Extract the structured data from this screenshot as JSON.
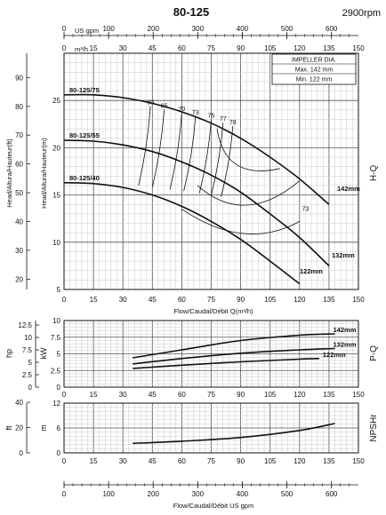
{
  "header": {
    "title": "80-125",
    "speed": "2900rpm"
  },
  "top_axis": {
    "unit_label": "US gpm",
    "ticks": [
      "0",
      "100",
      "200",
      "300",
      "400",
      "500",
      "600"
    ]
  },
  "flow_axis_top": {
    "unit_label": "m³/h",
    "ticks": [
      "0",
      "15",
      "30",
      "45",
      "60",
      "75",
      "90",
      "105",
      "120",
      "135",
      "150"
    ]
  },
  "bottom_axis_flow": {
    "label": "Flow/Caudal/Débit Q(m³/h)",
    "ticks": [
      "0",
      "15",
      "30",
      "45",
      "60",
      "75",
      "90",
      "105",
      "120",
      "135",
      "150"
    ]
  },
  "bottom_axis_gpm": {
    "label": "Flow/Caudal/Débit  US gpm",
    "ticks": [
      "0",
      "100",
      "200",
      "300",
      "400",
      "500",
      "600"
    ]
  },
  "impeller_box": {
    "title": "IMPELLER DIA.",
    "max": "Max.  142  mm",
    "min": "Min.  122  mm"
  },
  "hq_panel": {
    "side_label": "H-Q",
    "ylabel_ft": "Head/Altura/Hauteur(ft)",
    "ylabel_m": "Head/Altura/Hauteur(m)",
    "ft_ticks": [
      "20",
      "30",
      "40",
      "50",
      "60",
      "70",
      "80",
      "90"
    ],
    "m_ticks": [
      "5",
      "10",
      "15",
      "20",
      "25"
    ],
    "efficiency_labels": [
      "60",
      "65",
      "70",
      "73",
      "75",
      "77",
      "78",
      "73"
    ]
  },
  "pq_panel": {
    "side_label": "P-Q",
    "ylabel_hp": "hp",
    "ylabel_kw": "kW",
    "hp_ticks": [
      "0",
      "2.5",
      "5",
      "7.5",
      "10",
      "12.5"
    ],
    "kw_ticks": [
      "0",
      "2.5",
      "5",
      "7.5",
      "10"
    ]
  },
  "npsh_panel": {
    "side_label": "NPSHr",
    "ylabel_ft": "ft",
    "ylabel_m": "m",
    "ft_ticks": [
      "0",
      "20",
      "40"
    ],
    "m_ticks": [
      "0",
      "6",
      "12"
    ]
  },
  "chart_data": {
    "type": "line",
    "title": "80-125",
    "subtitle": "2900rpm",
    "charts": [
      {
        "panel": "H-Q",
        "xlabel": "Flow/Caudal/Débit Q(m³/h)",
        "ylabel": "Head/Altura/Hauteur(m)",
        "xlim": [
          0,
          150
        ],
        "ylim": [
          5,
          30
        ],
        "series": [
          {
            "name": "80-125/75",
            "x": [
              0,
              15,
              30,
              45,
              60,
              75,
              90,
              105,
              120,
              135
            ],
            "y": [
              25.6,
              25.6,
              25.3,
              24.7,
              23.8,
              22.6,
              21.0,
              19.0,
              16.7,
              14.0
            ]
          },
          {
            "name": "80-125/55",
            "x": [
              0,
              15,
              30,
              45,
              60,
              75,
              90,
              105,
              120,
              135
            ],
            "y": [
              20.8,
              20.7,
              20.3,
              19.6,
              18.5,
              17.1,
              15.3,
              13.0,
              10.5,
              7.5
            ]
          },
          {
            "name": "80-125/40",
            "x": [
              0,
              15,
              30,
              45,
              60,
              75,
              90,
              105,
              120
            ],
            "y": [
              16.3,
              16.2,
              15.8,
              15.0,
              13.8,
              12.2,
              10.3,
              8.0,
              5.6
            ]
          }
        ],
        "curve_end_labels": [
          "142mm",
          "132mm",
          "122mm"
        ],
        "efficiency_contours_pct": [
          60,
          65,
          70,
          73,
          75,
          77,
          78
        ]
      },
      {
        "panel": "P-Q",
        "ylabel": "kW",
        "xlim": [
          0,
          150
        ],
        "ylim": [
          0,
          10
        ],
        "series": [
          {
            "name": "142mm",
            "x": [
              35,
              60,
              90,
              120,
              138
            ],
            "y": [
              4.4,
              5.6,
              7.0,
              7.8,
              8.0
            ]
          },
          {
            "name": "132mm",
            "x": [
              35,
              60,
              90,
              120,
              138
            ],
            "y": [
              3.5,
              4.3,
              5.1,
              5.6,
              5.8
            ]
          },
          {
            "name": "122mm",
            "x": [
              35,
              60,
              90,
              120,
              130
            ],
            "y": [
              2.8,
              3.3,
              3.8,
              4.2,
              4.3
            ]
          }
        ]
      },
      {
        "panel": "NPSHr",
        "ylabel": "m",
        "xlim": [
          0,
          150
        ],
        "ylim": [
          0,
          12
        ],
        "series": [
          {
            "x": [
              35,
              60,
              90,
              120,
              138
            ],
            "y": [
              2.3,
              2.8,
              3.7,
              5.4,
              7.1
            ]
          }
        ]
      }
    ]
  }
}
